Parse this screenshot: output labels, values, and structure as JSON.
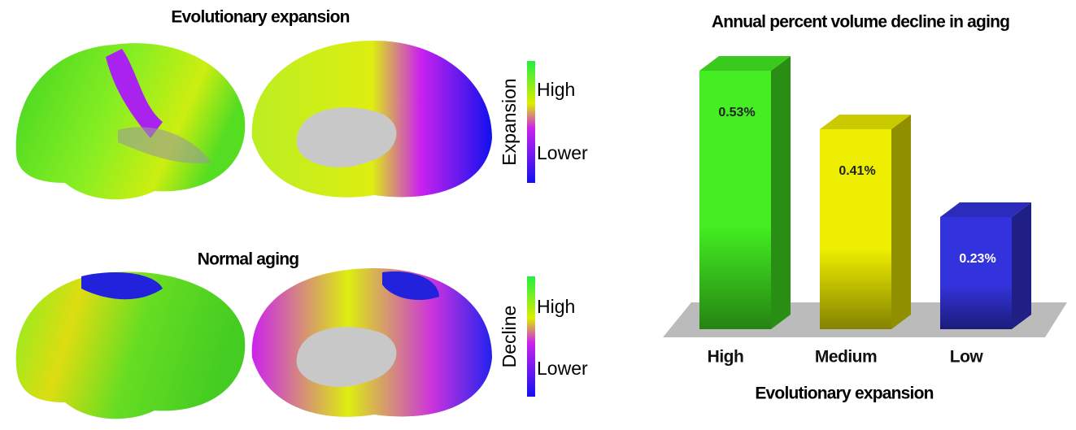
{
  "brain_panels": [
    {
      "title": "Evolutionary expansion",
      "colorbar_label": "Expansion",
      "high": "High",
      "low": "Lower"
    },
    {
      "title": "Normal aging",
      "colorbar_label": "Decline",
      "high": "High",
      "low": "Lower"
    }
  ],
  "chart_data": {
    "type": "bar3d",
    "title": "Annual percent volume decline in aging",
    "x_label": "Evolutionary expansion",
    "categories": [
      "High",
      "Medium",
      "Low"
    ],
    "values": [
      0.53,
      0.41,
      0.23
    ],
    "value_labels": [
      "0.53%",
      "0.41%",
      "0.23%"
    ],
    "colors": [
      "#44ee22",
      "#eeee00",
      "#3333dd"
    ]
  }
}
